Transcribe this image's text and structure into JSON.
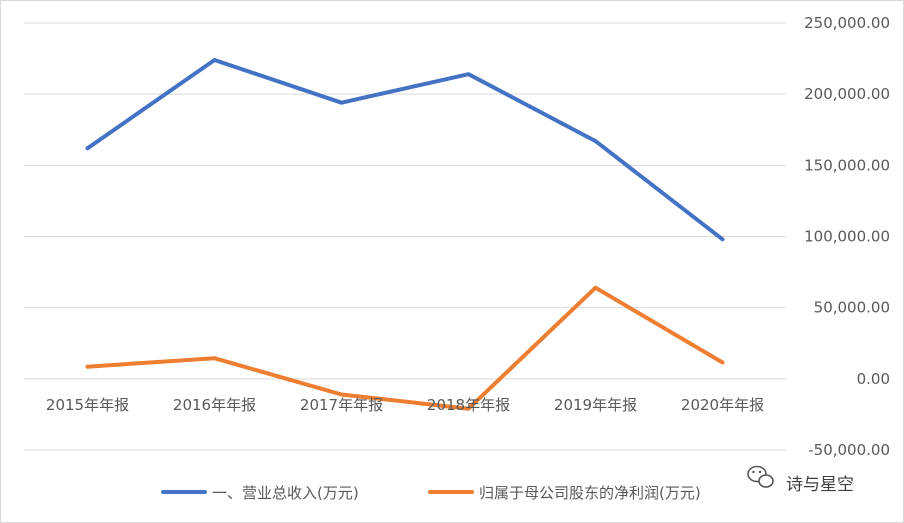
{
  "chart_data": {
    "type": "line",
    "categories": [
      "2015年年报",
      "2016年年报",
      "2017年年报",
      "2018年年报",
      "2019年年报",
      "2020年年报"
    ],
    "series": [
      {
        "name": "一、营业总收入(万元)",
        "color": "#4472C4",
        "values": [
          162000,
          224000,
          194000,
          214000,
          167000,
          98000
        ]
      },
      {
        "name": "归属于母公司股东的净利润(万元)",
        "color": "#ED7D31",
        "values": [
          8500,
          14500,
          -11000,
          -21000,
          64000,
          11500
        ]
      }
    ],
    "ylim": [
      -50000,
      250000
    ],
    "yticks": [
      -50000,
      0,
      50000,
      100000,
      150000,
      200000,
      250000
    ],
    "ytick_labels": [
      "-50,000.00",
      "0.00",
      "50,000.00",
      "100,000.00",
      "150,000.00",
      "200,000.00",
      "250,000.00"
    ],
    "y_axis_side": "right",
    "grid": true,
    "legend": "bottom",
    "title": "",
    "xlabel": "",
    "ylabel": ""
  },
  "watermark": {
    "text": "诗与星空",
    "icon": "wechat-icon"
  }
}
